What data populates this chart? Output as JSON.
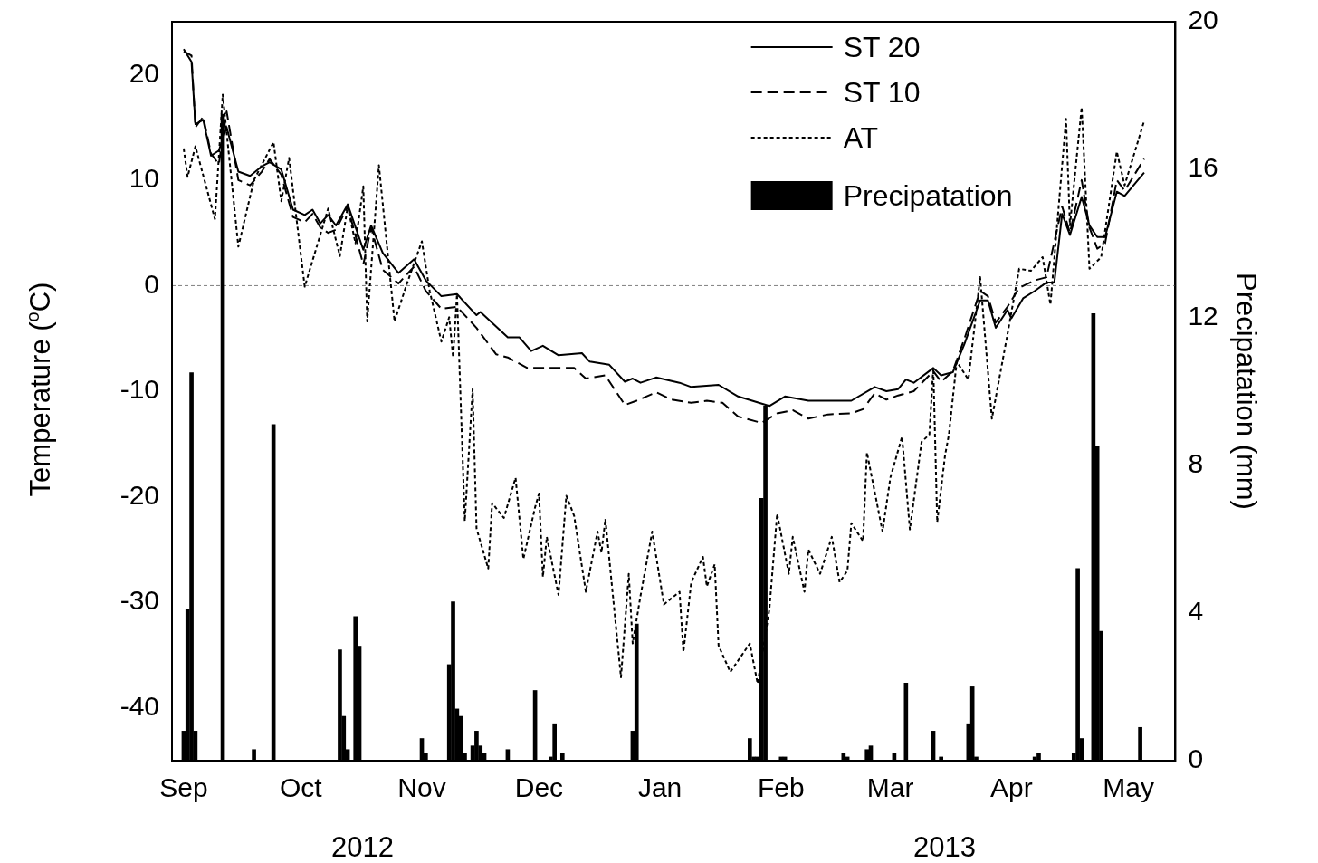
{
  "chart_data": {
    "type": "line",
    "ylabel": "Temperature ($^{o}$C)",
    "y2label": "Precipatation (mm)",
    "annotations": [
      "2012",
      "2013"
    ],
    "xlim": [
      "2012-08-29",
      "2013-05-13"
    ],
    "xticks": [
      {
        "value": "2012-09-01",
        "label": "Sep"
      },
      {
        "value": "2012-10-01",
        "label": "Oct"
      },
      {
        "value": "2012-11-01",
        "label": "Nov"
      },
      {
        "value": "2012-12-01",
        "label": "Dec"
      },
      {
        "value": "2013-01-01",
        "label": "Jan"
      },
      {
        "value": "2013-02-01",
        "label": "Feb"
      },
      {
        "value": "2013-03-01",
        "label": "Mar"
      },
      {
        "value": "2013-04-01",
        "label": "Apr"
      },
      {
        "value": "2013-05-01",
        "label": "May"
      }
    ],
    "ylim": [
      -45,
      25
    ],
    "yticks": [
      -40,
      -30,
      -20,
      -10,
      0,
      10,
      20
    ],
    "y2lim": [
      0,
      20
    ],
    "y2ticks": [
      0,
      4,
      8,
      12,
      16,
      20
    ],
    "grid": false,
    "legend": "top right",
    "marker": "none",
    "ref_lines": [
      {
        "axis": "y",
        "value": 0,
        "color": "#808080",
        "line_style": "dotted"
      }
    ],
    "series": [
      {
        "name": "ST 20",
        "color": "#000000",
        "line_style": "solid",
        "x": [
          "2012-09-01",
          "2012-09-03",
          "2012-09-04",
          "2012-09-06",
          "2012-09-08",
          "2012-09-10",
          "2012-09-12",
          "2012-09-15",
          "2012-09-18",
          "2012-09-21",
          "2012-09-23",
          "2012-09-26",
          "2012-09-29",
          "2012-10-02",
          "2012-10-04",
          "2012-10-06",
          "2012-10-08",
          "2012-10-10",
          "2012-10-13",
          "2012-10-17",
          "2012-10-19",
          "2012-10-22",
          "2012-10-26",
          "2012-10-30",
          "2012-11-02",
          "2012-11-06",
          "2012-11-10",
          "2012-11-15",
          "2012-11-16",
          "2012-11-23",
          "2012-11-26",
          "2012-11-29",
          "2012-12-02",
          "2012-12-06",
          "2012-12-12",
          "2012-12-14",
          "2012-12-19",
          "2012-12-23",
          "2012-12-25",
          "2012-12-27",
          "2012-12-31",
          "2013-01-06",
          "2013-01-09",
          "2013-01-16",
          "2013-01-21",
          "2013-01-29",
          "2013-02-02",
          "2013-02-08",
          "2013-02-19",
          "2013-02-25",
          "2013-02-28",
          "2013-03-03",
          "2013-03-05",
          "2013-03-07",
          "2013-03-12",
          "2013-03-14",
          "2013-03-17",
          "2013-03-20",
          "2013-03-24",
          "2013-03-26",
          "2013-03-28",
          "2013-03-31",
          "2013-04-01",
          "2013-04-04",
          "2013-04-07",
          "2013-04-10",
          "2013-04-12",
          "2013-04-14",
          "2013-04-16",
          "2013-04-19",
          "2013-04-21",
          "2013-04-23",
          "2013-04-25",
          "2013-04-28",
          "2013-04-30",
          "2013-05-05"
        ],
        "values": [
          22.4,
          21.2,
          15.3,
          15.7,
          12.3,
          12.8,
          15.0,
          10.8,
          10.4,
          11.3,
          11.7,
          11.0,
          7.2,
          6.7,
          7.2,
          5.9,
          6.7,
          5.7,
          7.7,
          3.4,
          5.7,
          3.1,
          1.2,
          2.5,
          0.5,
          -1.0,
          -0.8,
          -2.8,
          -2.5,
          -4.9,
          -4.9,
          -6.2,
          -5.7,
          -6.6,
          -6.4,
          -7.2,
          -7.5,
          -9.1,
          -8.8,
          -9.2,
          -8.7,
          -9.2,
          -9.6,
          -9.4,
          -10.5,
          -11.4,
          -10.5,
          -10.9,
          -10.9,
          -9.6,
          -10.0,
          -9.8,
          -8.9,
          -9.2,
          -7.8,
          -8.5,
          -8.2,
          -5.5,
          -1.4,
          -1.4,
          -4.0,
          -2.3,
          -3.1,
          -1.2,
          -0.5,
          0.3,
          0.3,
          6.8,
          4.8,
          8.4,
          5.7,
          4.6,
          4.6,
          8.9,
          8.5,
          10.7
        ]
      },
      {
        "name": "ST 10",
        "color": "#000000",
        "line_style": "dashed",
        "x": [
          "2012-09-01",
          "2012-09-03",
          "2012-09-04",
          "2012-09-06",
          "2012-09-08",
          "2012-09-10",
          "2012-09-12",
          "2012-09-15",
          "2012-09-18",
          "2012-09-21",
          "2012-09-23",
          "2012-09-26",
          "2012-09-29",
          "2012-10-02",
          "2012-10-04",
          "2012-10-06",
          "2012-10-08",
          "2012-10-10",
          "2012-10-13",
          "2012-10-17",
          "2012-10-19",
          "2012-10-22",
          "2012-10-26",
          "2012-10-30",
          "2012-11-02",
          "2012-11-06",
          "2012-11-10",
          "2012-11-15",
          "2012-11-20",
          "2012-11-23",
          "2012-11-28",
          "2012-12-05",
          "2012-12-10",
          "2012-12-13",
          "2012-12-18",
          "2012-12-23",
          "2012-12-26",
          "2012-12-31",
          "2013-01-04",
          "2013-01-09",
          "2013-01-13",
          "2013-01-17",
          "2013-01-21",
          "2013-01-27",
          "2013-01-31",
          "2013-02-04",
          "2013-02-08",
          "2013-02-13",
          "2013-02-19",
          "2013-02-22",
          "2013-02-25",
          "2013-02-28",
          "2013-03-03",
          "2013-03-07",
          "2013-03-12",
          "2013-03-14",
          "2013-03-17",
          "2013-03-20",
          "2013-03-24",
          "2013-03-26",
          "2013-03-28",
          "2013-03-31",
          "2013-04-03",
          "2013-04-07",
          "2013-04-10",
          "2013-04-14",
          "2013-04-16",
          "2013-04-19",
          "2013-04-21",
          "2013-04-23",
          "2013-04-25",
          "2013-04-28",
          "2013-04-30",
          "2013-05-05"
        ],
        "values": [
          22.2,
          21.8,
          15.0,
          16.0,
          12.5,
          11.5,
          16.5,
          10.0,
          9.5,
          10.8,
          12.0,
          10.5,
          6.5,
          6.0,
          6.8,
          5.5,
          5.0,
          5.3,
          7.5,
          2.0,
          5.5,
          1.5,
          0.2,
          1.8,
          -0.5,
          -2.2,
          -2.0,
          -4.0,
          -6.5,
          -6.8,
          -7.8,
          -7.8,
          -7.8,
          -8.8,
          -8.5,
          -11.3,
          -10.9,
          -10.1,
          -10.8,
          -11.1,
          -10.9,
          -11.1,
          -12.4,
          -13.0,
          -12.1,
          -11.8,
          -12.6,
          -12.2,
          -12.1,
          -11.7,
          -10.2,
          -10.8,
          -10.4,
          -10.0,
          -8.1,
          -9.1,
          -8.1,
          -5.0,
          -0.5,
          -1.0,
          -3.5,
          -2.0,
          -0.2,
          0.5,
          0.8,
          7.5,
          5.0,
          10.0,
          5.5,
          3.5,
          4.0,
          10.0,
          9.0,
          12.0
        ]
      },
      {
        "name": "AT",
        "color": "#000000",
        "line_style": "dotted",
        "x": [
          "2012-09-01",
          "2012-09-02",
          "2012-09-04",
          "2012-09-09",
          "2012-09-11",
          "2012-09-15",
          "2012-09-19",
          "2012-09-24",
          "2012-09-26",
          "2012-09-28",
          "2012-10-02",
          "2012-10-08",
          "2012-10-11",
          "2012-10-13",
          "2012-10-15",
          "2012-10-17",
          "2012-10-18",
          "2012-10-21",
          "2012-10-25",
          "2012-10-28",
          "2012-11-01",
          "2012-11-03",
          "2012-11-06",
          "2012-11-08",
          "2012-11-09",
          "2012-11-10",
          "2012-11-12",
          "2012-11-14",
          "2012-11-15",
          "2012-11-18",
          "2012-11-19",
          "2012-11-22",
          "2012-11-25",
          "2012-11-27",
          "2012-11-30",
          "2012-12-01",
          "2012-12-02",
          "2012-12-03",
          "2012-12-06",
          "2012-12-08",
          "2012-12-10",
          "2012-12-13",
          "2012-12-16",
          "2012-12-17",
          "2012-12-18",
          "2012-12-22",
          "2012-12-24",
          "2012-12-25",
          "2012-12-27",
          "2012-12-30",
          "2013-01-02",
          "2013-01-06",
          "2013-01-07",
          "2013-01-09",
          "2013-01-12",
          "2013-01-13",
          "2013-01-15",
          "2013-01-16",
          "2013-01-19",
          "2013-01-24",
          "2013-01-26",
          "2013-01-29",
          "2013-01-31",
          "2013-02-03",
          "2013-02-04",
          "2013-02-07",
          "2013-02-08",
          "2013-02-11",
          "2013-02-14",
          "2013-02-16",
          "2013-02-18",
          "2013-02-19",
          "2013-02-22",
          "2013-02-23",
          "2013-02-27",
          "2013-03-01",
          "2013-03-04",
          "2013-03-06",
          "2013-03-09",
          "2013-03-11",
          "2013-03-12",
          "2013-03-13",
          "2013-03-15",
          "2013-03-16",
          "2013-03-18",
          "2013-03-21",
          "2013-03-24",
          "2013-03-27",
          "2013-03-31",
          "2013-04-03",
          "2013-04-06",
          "2013-04-09",
          "2013-04-11",
          "2013-04-15",
          "2013-04-16",
          "2013-04-19",
          "2013-04-21",
          "2013-04-24",
          "2013-04-28",
          "2013-04-30",
          "2013-05-05"
        ],
        "values": [
          13.0,
          10.3,
          13.2,
          6.3,
          18.1,
          3.7,
          10.0,
          13.6,
          8.0,
          12.1,
          -0.1,
          7.3,
          2.8,
          7.5,
          4.0,
          9.4,
          -3.4,
          11.4,
          -3.4,
          0.0,
          4.2,
          -0.5,
          -5.3,
          -3.0,
          -6.8,
          -0.8,
          -22.3,
          -9.8,
          -23.0,
          -26.8,
          -20.6,
          -22.0,
          -18.2,
          -25.9,
          -21.0,
          -19.7,
          -27.6,
          -23.8,
          -29.3,
          -19.9,
          -21.8,
          -29.0,
          -23.3,
          -25.3,
          -22.1,
          -37.1,
          -27.3,
          -33.9,
          -29.4,
          -23.3,
          -30.2,
          -29.0,
          -34.7,
          -28.1,
          -25.7,
          -28.5,
          -26.4,
          -34.1,
          -36.6,
          -33.9,
          -37.7,
          -30.7,
          -21.6,
          -27.3,
          -23.8,
          -29.0,
          -25.0,
          -27.3,
          -23.8,
          -28.1,
          -27.0,
          -22.5,
          -24.2,
          -15.8,
          -23.3,
          -18.2,
          -14.3,
          -23.1,
          -14.8,
          -14.1,
          -7.8,
          -22.4,
          -16.1,
          -14.1,
          -7.2,
          -8.9,
          0.8,
          -12.6,
          -4.6,
          1.6,
          1.4,
          2.7,
          -1.8,
          15.8,
          5.7,
          16.9,
          1.6,
          2.7,
          12.7,
          9.5,
          15.6
        ]
      },
      {
        "name": "Precipatation",
        "type": "bar",
        "axis": "y2",
        "color": "#000000",
        "x": [
          "2012-09-01",
          "2012-09-02",
          "2012-09-03",
          "2012-09-04",
          "2012-09-11",
          "2012-09-19",
          "2012-09-24",
          "2012-10-11",
          "2012-10-12",
          "2012-10-13",
          "2012-10-15",
          "2012-10-16",
          "2012-11-01",
          "2012-11-02",
          "2012-11-08",
          "2012-11-09",
          "2012-11-10",
          "2012-11-11",
          "2012-11-12",
          "2012-11-14",
          "2012-11-15",
          "2012-11-16",
          "2012-11-17",
          "2012-11-23",
          "2012-11-30",
          "2012-12-04",
          "2012-12-05",
          "2012-12-07",
          "2012-12-25",
          "2012-12-26",
          "2013-01-24",
          "2013-01-25",
          "2013-01-26",
          "2013-01-27",
          "2013-01-28",
          "2013-02-01",
          "2013-02-02",
          "2013-02-17",
          "2013-02-18",
          "2013-02-23",
          "2013-02-24",
          "2013-03-02",
          "2013-03-05",
          "2013-03-12",
          "2013-03-14",
          "2013-03-21",
          "2013-03-22",
          "2013-03-23",
          "2013-04-07",
          "2013-04-08",
          "2013-04-17",
          "2013-04-18",
          "2013-04-19",
          "2013-04-22",
          "2013-04-23",
          "2013-04-24",
          "2013-05-04"
        ],
        "values": [
          0.8,
          4.1,
          10.5,
          0.8,
          17.5,
          0.3,
          9.1,
          3.0,
          1.2,
          0.3,
          3.9,
          3.1,
          0.6,
          0.2,
          2.6,
          4.3,
          1.4,
          1.2,
          0.2,
          0.4,
          0.8,
          0.4,
          0.2,
          0.3,
          1.9,
          0.1,
          1.0,
          0.2,
          0.8,
          3.7,
          0.6,
          0.1,
          0.1,
          7.1,
          9.6,
          0.1,
          0.1,
          0.2,
          0.1,
          0.3,
          0.4,
          0.2,
          2.1,
          0.8,
          0.1,
          1.0,
          2.0,
          0.1,
          0.1,
          0.2,
          0.2,
          5.2,
          0.6,
          12.1,
          8.5,
          3.5,
          0.9
        ]
      }
    ]
  }
}
